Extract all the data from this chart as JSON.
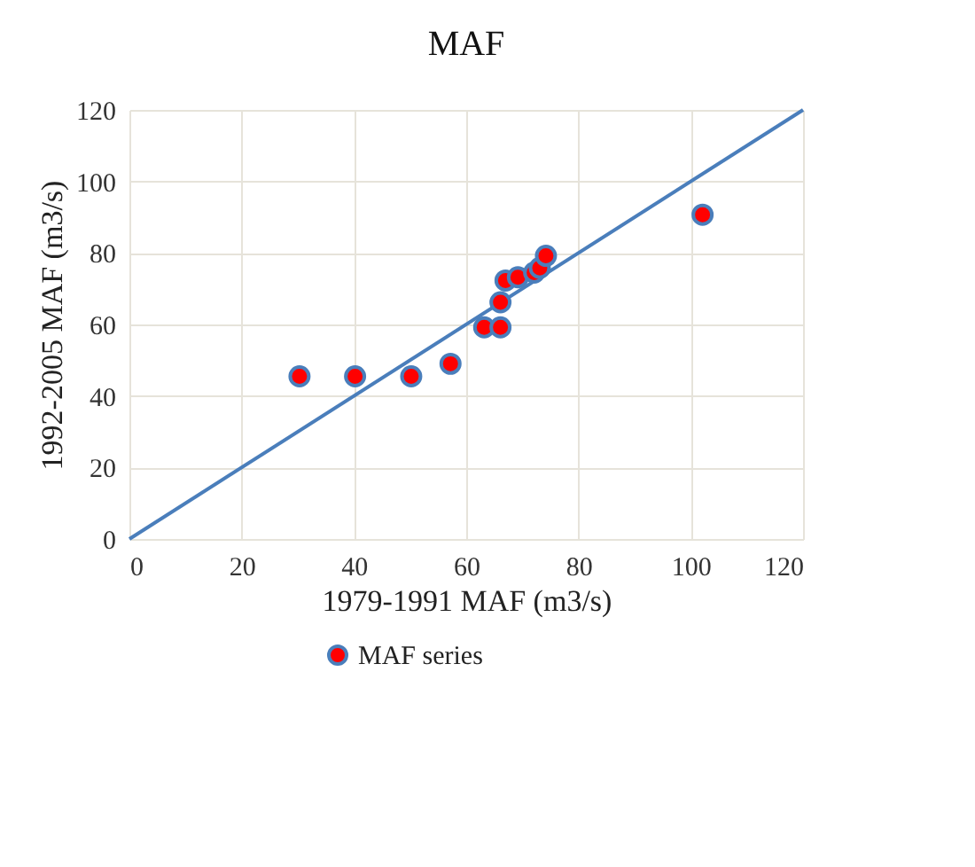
{
  "chart_data": {
    "type": "scatter",
    "title": "MAF",
    "xlabel": "1979-1991 MAF (m3/s)",
    "ylabel": "1992-2005 MAF (m3/s)",
    "xlim": [
      0,
      120
    ],
    "ylim": [
      0,
      120
    ],
    "xticks": [
      0,
      20,
      40,
      60,
      80,
      100,
      120
    ],
    "yticks": [
      0,
      20,
      40,
      60,
      80,
      100,
      120
    ],
    "grid": true,
    "legend": "bottom",
    "series": [
      {
        "name": "MAF series",
        "color": "#ff0000",
        "marker": "circle",
        "x": [
          30.3,
          40.2,
          50.2,
          57.2,
          63.2,
          66.1,
          66.1,
          67,
          69.2,
          72.1,
          73.1,
          74.2,
          102.1
        ],
        "values": [
          45.5,
          45.5,
          45.5,
          49,
          59.2,
          59.2,
          66.2,
          72.3,
          73.2,
          74.5,
          75.8,
          79.2,
          90.7
        ]
      },
      {
        "type": "line",
        "color": "#4a7ebb",
        "marker": "none",
        "x": [
          0,
          120
        ],
        "values": [
          0,
          120
        ]
      }
    ]
  }
}
